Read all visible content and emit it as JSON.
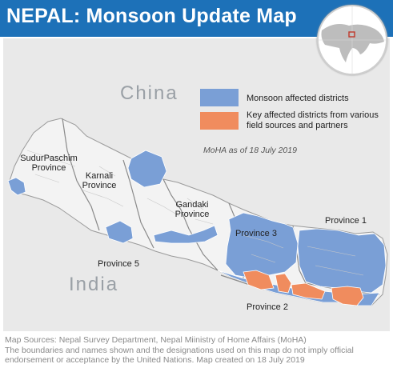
{
  "title": "NEPAL:  Monsoon Update Map",
  "colors": {
    "banner": "#1d71b8",
    "affected": "#7a9fd6",
    "key_affected": "#f08c5e",
    "land": "#f3f3f3",
    "background": "#e9e9e9"
  },
  "countries": {
    "north": "China",
    "south": "India"
  },
  "legend": {
    "affected": "Monsoon affected districts",
    "key_affected_line1": "Key affected districts from various",
    "key_affected_line2": "field sources and partners"
  },
  "as_of": "MoHA as of 18 July 2019",
  "provinces": {
    "sudurpaschim_line1": "SudurPaschim",
    "sudurpaschim_line2": "Province",
    "karnali_line1": "Karnali",
    "karnali_line2": "Province",
    "gandaki_line1": "Gandaki",
    "gandaki_line2": "Province",
    "p1": "Province 1",
    "p2": "Province 2",
    "p3": "Province 3",
    "p5": "Province 5"
  },
  "footer": {
    "line1": "Map Sources: Nepal Survey Department, Nepal Miinistry of Home Affairs (MoHA)",
    "line2": "The boundaries and names shown and the designations used on this map do not imply official",
    "line3": "endorsement or acceptance by the United Nations. Map created on 18 July 2019"
  }
}
